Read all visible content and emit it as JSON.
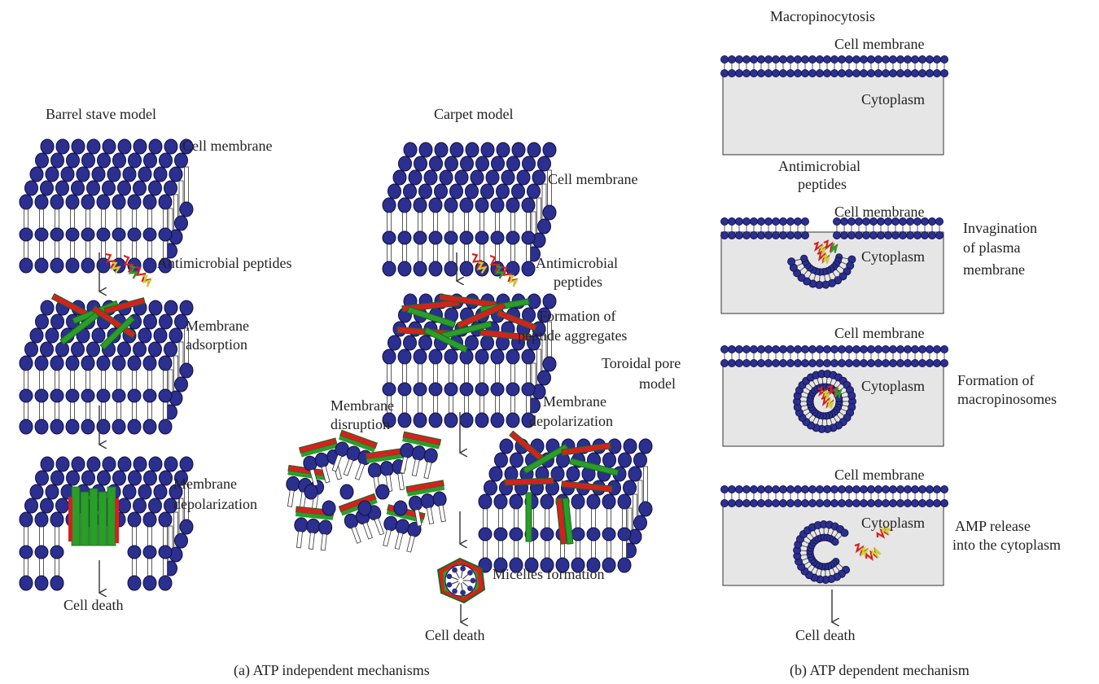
{
  "colors": {
    "head": "#2b2f8f",
    "head_stroke": "#101040",
    "tail": "#ffffff",
    "peptide_red": "#d62020",
    "peptide_green": "#2a9d2a",
    "peptide_yellow": "#c8d43a",
    "cytoplasm": "#e6e6e6",
    "arrow": "#333333"
  },
  "panel_a": {
    "caption": "(a)  ATP independent mechanisms",
    "barrel": {
      "title": "Barrel stave model",
      "cell_membrane": "Cell membrane",
      "peptides": "Antimicrobial peptides",
      "adsorption_1": "Membrane",
      "adsorption_2": "adsorption",
      "depol_1": "Membrane",
      "depol_2": "depolarization",
      "death": "Cell death"
    },
    "carpet": {
      "title": "Carpet model",
      "cell_membrane": "Cell membrane",
      "peptides_1": "Antimicrobial",
      "peptides_2": "peptides",
      "aggregates_1": "Formation of",
      "aggregates_2": "peptide aggregates",
      "toroidal_1": "Toroidal pore",
      "toroidal_2": "model",
      "disruption_1": "Membrane",
      "disruption_2": "disruption",
      "depol_1": "Membrane",
      "depol_2": "depolarization",
      "micelles": "Micelles formation",
      "death": "Cell death"
    }
  },
  "panel_b": {
    "caption": "(b)  ATP dependent mechanism",
    "title": "Macropinocytosis",
    "cell_membrane": "Cell membrane",
    "cytoplasm": "Cytoplasm",
    "peptides_1": "Antimicrobial",
    "peptides_2": "peptides",
    "invag_1": "Invagination",
    "invag_2": "of plasma",
    "invag_3": "membrane",
    "formation_1": "Formation of",
    "formation_2": "macropinosomes",
    "release_1": "AMP release",
    "release_2": "into the cytoplasm",
    "death": "Cell death"
  }
}
